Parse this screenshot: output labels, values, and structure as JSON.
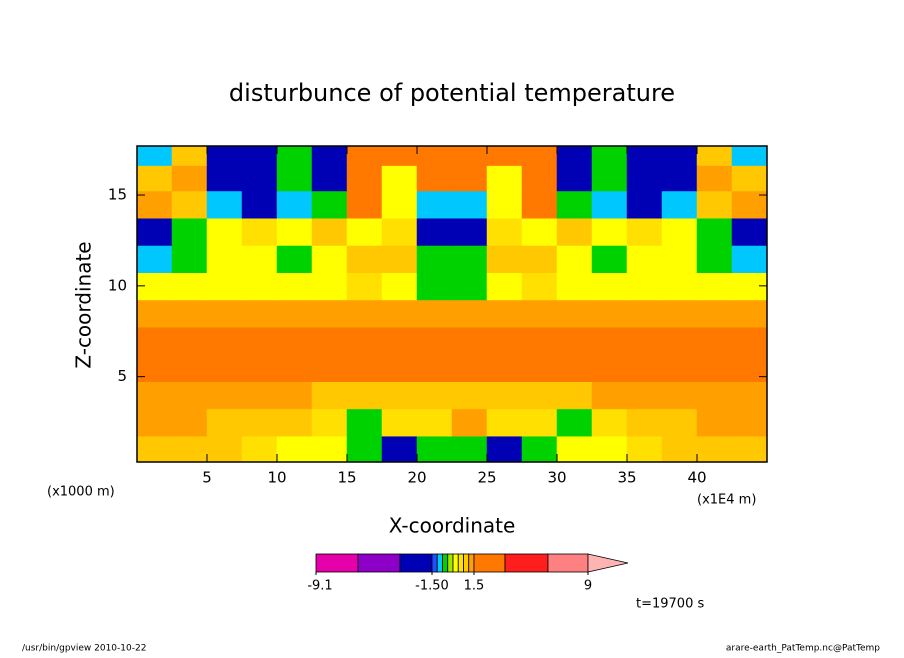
{
  "chart_data": {
    "type": "contour",
    "title": "disturbunce of potential temperature",
    "x_label": "X-coordinate",
    "y_label": "Z-coordinate",
    "x_unit": "(x1E4 m)",
    "y_unit": "(x1000 m)",
    "time_label": "t=19700 s",
    "footer_left": "/usr/bin/gpview   2010-10-22",
    "footer_right": "arare-earth_PatTemp.nc@PatTemp",
    "xlim": [
      0,
      45
    ],
    "ylim": [
      0.3,
      17.7
    ],
    "xticks": [
      5,
      10,
      15,
      20,
      25,
      30,
      35,
      40
    ],
    "yticks": [
      5,
      10,
      15
    ],
    "x": [
      1.25,
      3.75,
      6.25,
      8.75,
      11.25,
      13.75,
      16.25,
      18.75,
      21.25,
      23.75,
      26.25,
      28.75,
      31.25,
      33.75,
      36.25,
      38.75,
      41.25,
      43.75
    ],
    "z": [
      1.0,
      2.5,
      4.0,
      5.5,
      7.0,
      8.5,
      10.0,
      11.5,
      13.0,
      14.5,
      16.0,
      17.3
    ],
    "values": [
      [
        0.8,
        0.8,
        0.8,
        0.45,
        0.15,
        0.15,
        -0.4,
        -2,
        -0.4,
        -0.4,
        -2,
        -0.4,
        0.15,
        0.15,
        0.45,
        0.8,
        0.8,
        0.8
      ],
      [
        1.2,
        1.2,
        0.8,
        0.8,
        0.8,
        0.45,
        -0.4,
        0.45,
        0.45,
        1.2,
        0.45,
        0.45,
        -0.4,
        0.45,
        0.8,
        0.8,
        1.2,
        1.2
      ],
      [
        1.2,
        1.2,
        1.2,
        1.2,
        1.2,
        0.8,
        0.8,
        0.8,
        0.8,
        0.8,
        0.8,
        0.8,
        0.8,
        1.2,
        1.2,
        1.2,
        1.2,
        1.2
      ],
      [
        2,
        2,
        2,
        2,
        2,
        2,
        2,
        2,
        2,
        2,
        2,
        2,
        2,
        2,
        2,
        2,
        2,
        2
      ],
      [
        2,
        2,
        2,
        2,
        2,
        2,
        2,
        2,
        2,
        2,
        2,
        2,
        2,
        2,
        2,
        2,
        2,
        2
      ],
      [
        1.2,
        1.2,
        1.2,
        1.2,
        1.2,
        1.2,
        1.2,
        1.2,
        1.2,
        1.2,
        1.2,
        1.2,
        1.2,
        1.2,
        1.2,
        1.2,
        1.2,
        1.2
      ],
      [
        0.15,
        0.15,
        0.15,
        0.15,
        0.15,
        0.15,
        0.45,
        0.15,
        -0.4,
        -0.4,
        0.15,
        0.45,
        0.15,
        0.15,
        0.15,
        0.15,
        0.15,
        0.15
      ],
      [
        -0.8,
        -0.4,
        0.15,
        0.15,
        -0.4,
        0.15,
        0.8,
        0.8,
        -0.4,
        -0.4,
        0.8,
        0.8,
        0.15,
        -0.4,
        0.15,
        0.15,
        -0.4,
        -0.8
      ],
      [
        -2,
        -0.4,
        0.15,
        0.45,
        0.15,
        0.8,
        0.15,
        0.45,
        -2,
        -2,
        0.45,
        0.15,
        0.8,
        0.15,
        0.45,
        0.15,
        -0.4,
        -2
      ],
      [
        1.2,
        0.8,
        -0.8,
        -2,
        -0.8,
        -0.4,
        2,
        0.15,
        -0.8,
        -0.8,
        0.15,
        2,
        -0.4,
        -0.8,
        -2,
        -0.8,
        0.8,
        1.2
      ],
      [
        0.8,
        1.2,
        -2,
        -2,
        -0.4,
        -2,
        2,
        0.15,
        2,
        2,
        0.15,
        2,
        -2,
        -0.4,
        -2,
        -2,
        1.2,
        0.8
      ],
      [
        -0.8,
        0.8,
        -2,
        -2,
        -0.4,
        -2,
        2,
        2,
        2,
        2,
        2,
        2,
        -2,
        -0.4,
        -2,
        -2,
        0.8,
        -0.8
      ]
    ],
    "colorbar": {
      "levels": [
        -9.1,
        -6,
        -3,
        -1.5,
        -1,
        -0.6,
        -0.3,
        0,
        0.3,
        0.6,
        1,
        1.5,
        3,
        6,
        9
      ],
      "colors": [
        "#e600aa",
        "#8c00c8",
        "#0000b4",
        "#1e50ff",
        "#00c8ff",
        "#00d200",
        "#a0e600",
        "#ffff00",
        "#ffe000",
        "#ffc800",
        "#ffa000",
        "#ff7800",
        "#ff1e1e",
        "#ff8080"
      ],
      "over_color": "#ffb4b4",
      "ticks": [
        -9.1,
        {
          "value": -1.5,
          "label": "-1.50"
        },
        1.5,
        9
      ]
    }
  }
}
